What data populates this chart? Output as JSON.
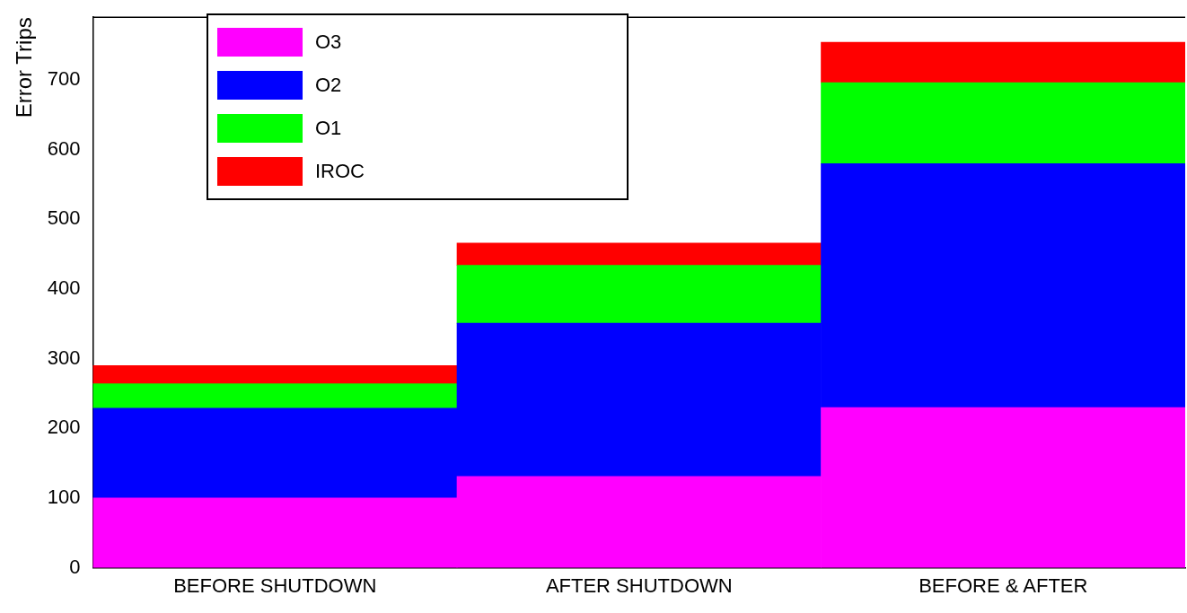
{
  "chart_data": {
    "type": "bar",
    "stacked": true,
    "ylabel": "Error Trips",
    "categories": [
      "BEFORE SHUTDOWN",
      "AFTER SHUTDOWN",
      "BEFORE & AFTER"
    ],
    "series": [
      {
        "name": "O3",
        "color": "#ff00ff",
        "values": [
          100,
          131,
          230
        ]
      },
      {
        "name": "O2",
        "color": "#0000ff",
        "values": [
          129,
          220,
          350
        ]
      },
      {
        "name": "O1",
        "color": "#00ff00",
        "values": [
          35,
          83,
          116
        ]
      },
      {
        "name": "IROC",
        "color": "#ff0000",
        "values": [
          26,
          32,
          58
        ]
      }
    ],
    "ylim": [
      0,
      790
    ],
    "yticks": [
      0,
      100,
      200,
      300,
      400,
      500,
      600,
      700
    ],
    "grid": false,
    "legend": "top left"
  }
}
